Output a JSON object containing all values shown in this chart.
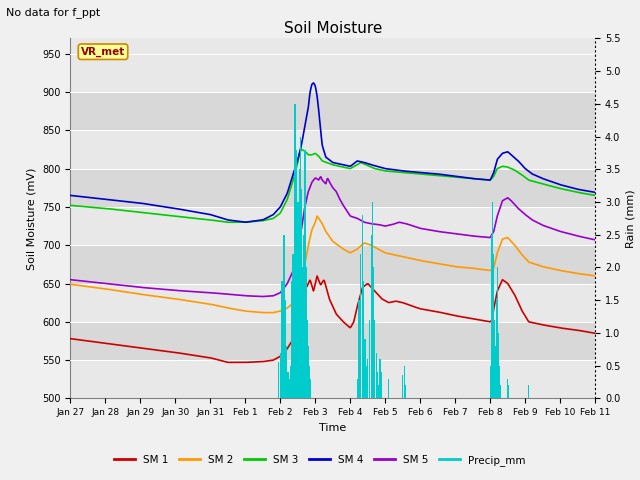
{
  "title": "Soil Moisture",
  "subtitle": "No data for f_ppt",
  "ylabel_left": "Soil Moisture (mV)",
  "ylabel_right": "Rain (mm)",
  "xlabel": "Time",
  "ylim_left": [
    500,
    970
  ],
  "ylim_right": [
    0.0,
    5.5
  ],
  "yticks_left": [
    500,
    550,
    600,
    650,
    700,
    750,
    800,
    850,
    900,
    950
  ],
  "yticks_right": [
    0.0,
    0.5,
    1.0,
    1.5,
    2.0,
    2.5,
    3.0,
    3.5,
    4.0,
    4.5,
    5.0,
    5.5
  ],
  "xticklabels": [
    "Jan 27",
    "Jan 28",
    "Jan 29",
    "Jan 30",
    "Jan 31",
    "Feb 1",
    "Feb 2",
    "Feb 3",
    "Feb 4",
    "Feb 5",
    "Feb 6",
    "Feb 7",
    "Feb 8",
    "Feb 9",
    "Feb 10",
    "Feb 11"
  ],
  "vr_met_label": "VR_met",
  "legend_entries": [
    "SM 1",
    "SM 2",
    "SM 3",
    "SM 4",
    "SM 5",
    "Precip_mm"
  ],
  "line_colors": [
    "#cc0000",
    "#ff9900",
    "#00cc00",
    "#0000cc",
    "#9900cc",
    "#00cccc"
  ],
  "background_color": "#f0f0f0",
  "plot_bg_color": "#e8e8e8",
  "stripe_colors": [
    "#e8e8e8",
    "#d8d8d8"
  ]
}
